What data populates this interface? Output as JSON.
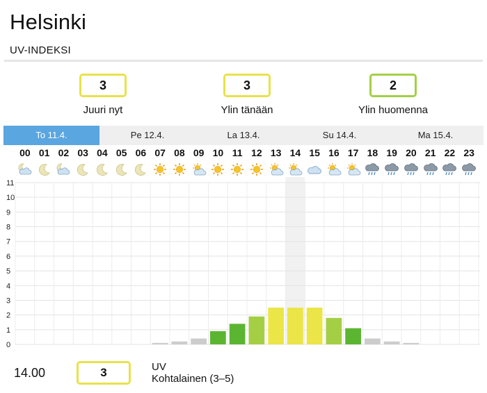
{
  "city": "Helsinki",
  "section_label": "UV-INDEKSI",
  "summary": [
    {
      "value": "3",
      "label": "Juuri nyt",
      "color": "#e8e24a"
    },
    {
      "value": "3",
      "label": "Ylin tänään",
      "color": "#e8e24a"
    },
    {
      "value": "2",
      "label": "Ylin huomenna",
      "color": "#a4cf45"
    }
  ],
  "tabs": [
    "To 11.4.",
    "Pe 12.4.",
    "La 13.4.",
    "Su 14.4.",
    "Ma 15.4."
  ],
  "active_tab": 0,
  "hours": [
    "00",
    "01",
    "02",
    "03",
    "04",
    "05",
    "06",
    "07",
    "08",
    "09",
    "10",
    "11",
    "12",
    "13",
    "14",
    "15",
    "16",
    "17",
    "18",
    "19",
    "20",
    "21",
    "22",
    "23"
  ],
  "weather_icons": [
    "partly-cloudy-night-icon",
    "moon-icon",
    "partly-cloudy-night-icon",
    "moon-icon",
    "moon-icon",
    "moon-icon",
    "moon-icon",
    "sun-icon",
    "sun-icon",
    "partly-cloudy-icon",
    "sun-icon",
    "sun-icon",
    "sun-icon",
    "partly-cloudy-icon",
    "partly-cloudy-icon",
    "cloud-icon",
    "partly-cloudy-icon",
    "partly-cloudy-icon",
    "rain-icon",
    "rain-icon",
    "rain-icon",
    "rain-icon",
    "rain-icon",
    "rain-icon"
  ],
  "highlight_hour": "14",
  "chart_data": {
    "type": "bar",
    "categories": [
      "00",
      "01",
      "02",
      "03",
      "04",
      "05",
      "06",
      "07",
      "08",
      "09",
      "10",
      "11",
      "12",
      "13",
      "14",
      "15",
      "16",
      "17",
      "18",
      "19",
      "20",
      "21",
      "22",
      "23"
    ],
    "values": [
      0,
      0,
      0,
      0,
      0,
      0,
      0,
      0.1,
      0.2,
      0.4,
      0.9,
      1.4,
      1.9,
      2.5,
      2.5,
      2.5,
      1.8,
      1.1,
      0.4,
      0.2,
      0.1,
      0,
      0,
      0
    ],
    "ylim": [
      0,
      11
    ],
    "yticks": [
      "0",
      "1",
      "2",
      "3",
      "4",
      "5",
      "6",
      "7",
      "8",
      "9",
      "10",
      "11"
    ],
    "grid": true,
    "colors": {
      "low": "#cccccc",
      "green": "#5cb531",
      "lightgreen": "#a4cf45",
      "yellow": "#ebe548"
    }
  },
  "footer": {
    "time": "14.00",
    "value": "3",
    "color": "#e8e24a",
    "uv_label": "UV",
    "uv_desc": "Kohtalainen (3–5)"
  }
}
